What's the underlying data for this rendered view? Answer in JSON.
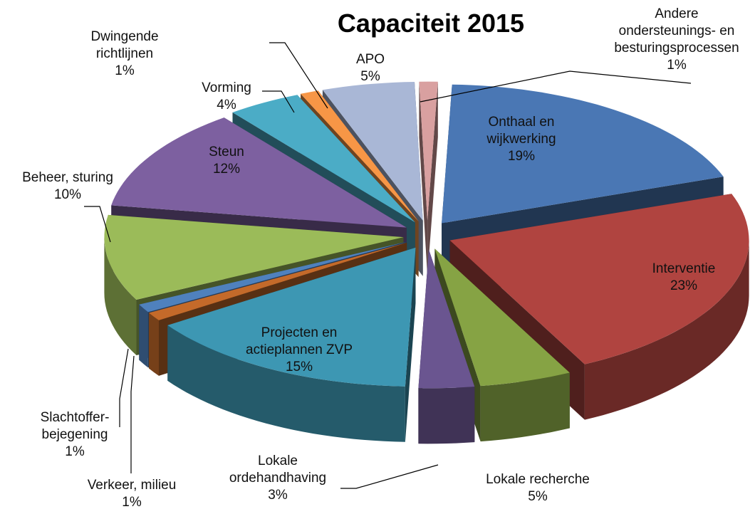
{
  "chart_data": {
    "type": "pie",
    "title": "Capaciteit 2015",
    "categories": [
      "Onthaal en wijkwerking",
      "Interventie",
      "Lokale recherche",
      "Lokale ordehandhaving",
      "Projecten en actieplannen ZVP",
      "Verkeer, milieu",
      "Slachtoffer-bejegening",
      "Beheer, sturing",
      "Steun",
      "Vorming",
      "Dwingende richtlijnen",
      "APO",
      "Andere ondersteunings- en besturingsprocessen"
    ],
    "values": [
      19,
      23,
      5,
      3,
      15,
      1,
      1,
      10,
      12,
      4,
      1,
      5,
      1
    ],
    "value_labels": [
      "19%",
      "23%",
      "5%",
      "3%",
      "15%",
      "1%",
      "1%",
      "10%",
      "12%",
      "4%",
      "1%",
      "5%",
      "1%"
    ],
    "colors": [
      "#4a77b4",
      "#b04440",
      "#86a344",
      "#6a5590",
      "#3d97b3",
      "#c46a2a",
      "#4f81bd",
      "#9bbb59",
      "#7d60a0",
      "#4bacc6",
      "#f79646",
      "#a9b7d6",
      "#d9a0a0"
    ]
  }
}
